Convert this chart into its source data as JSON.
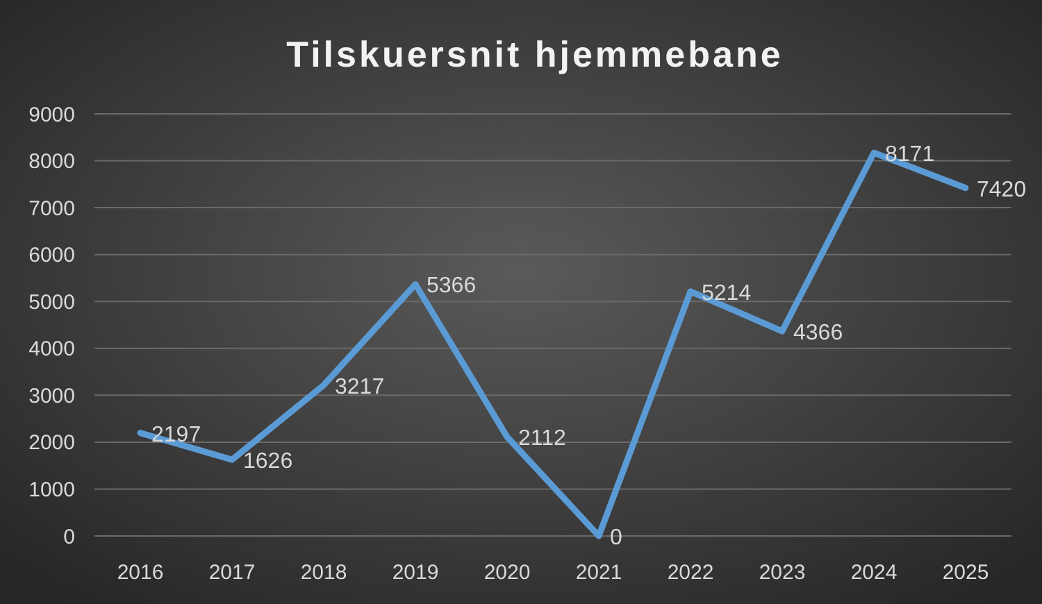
{
  "chart_data": {
    "type": "line",
    "title": "Tilskuersnit hjemmebane",
    "categories": [
      "2016",
      "2017",
      "2018",
      "2019",
      "2020",
      "2021",
      "2022",
      "2023",
      "2024",
      "2025"
    ],
    "series": [
      {
        "color": "#5b9bd5",
        "values": [
          2197,
          1626,
          3217,
          5366,
          2112,
          0,
          5214,
          4366,
          8171,
          7420
        ]
      }
    ],
    "ylim": [
      0,
      9000
    ],
    "yticks": [
      0,
      1000,
      2000,
      3000,
      4000,
      5000,
      6000,
      7000,
      8000,
      9000
    ],
    "grid": "y",
    "data_labels": true,
    "marker": "none",
    "line_style": "solid"
  }
}
